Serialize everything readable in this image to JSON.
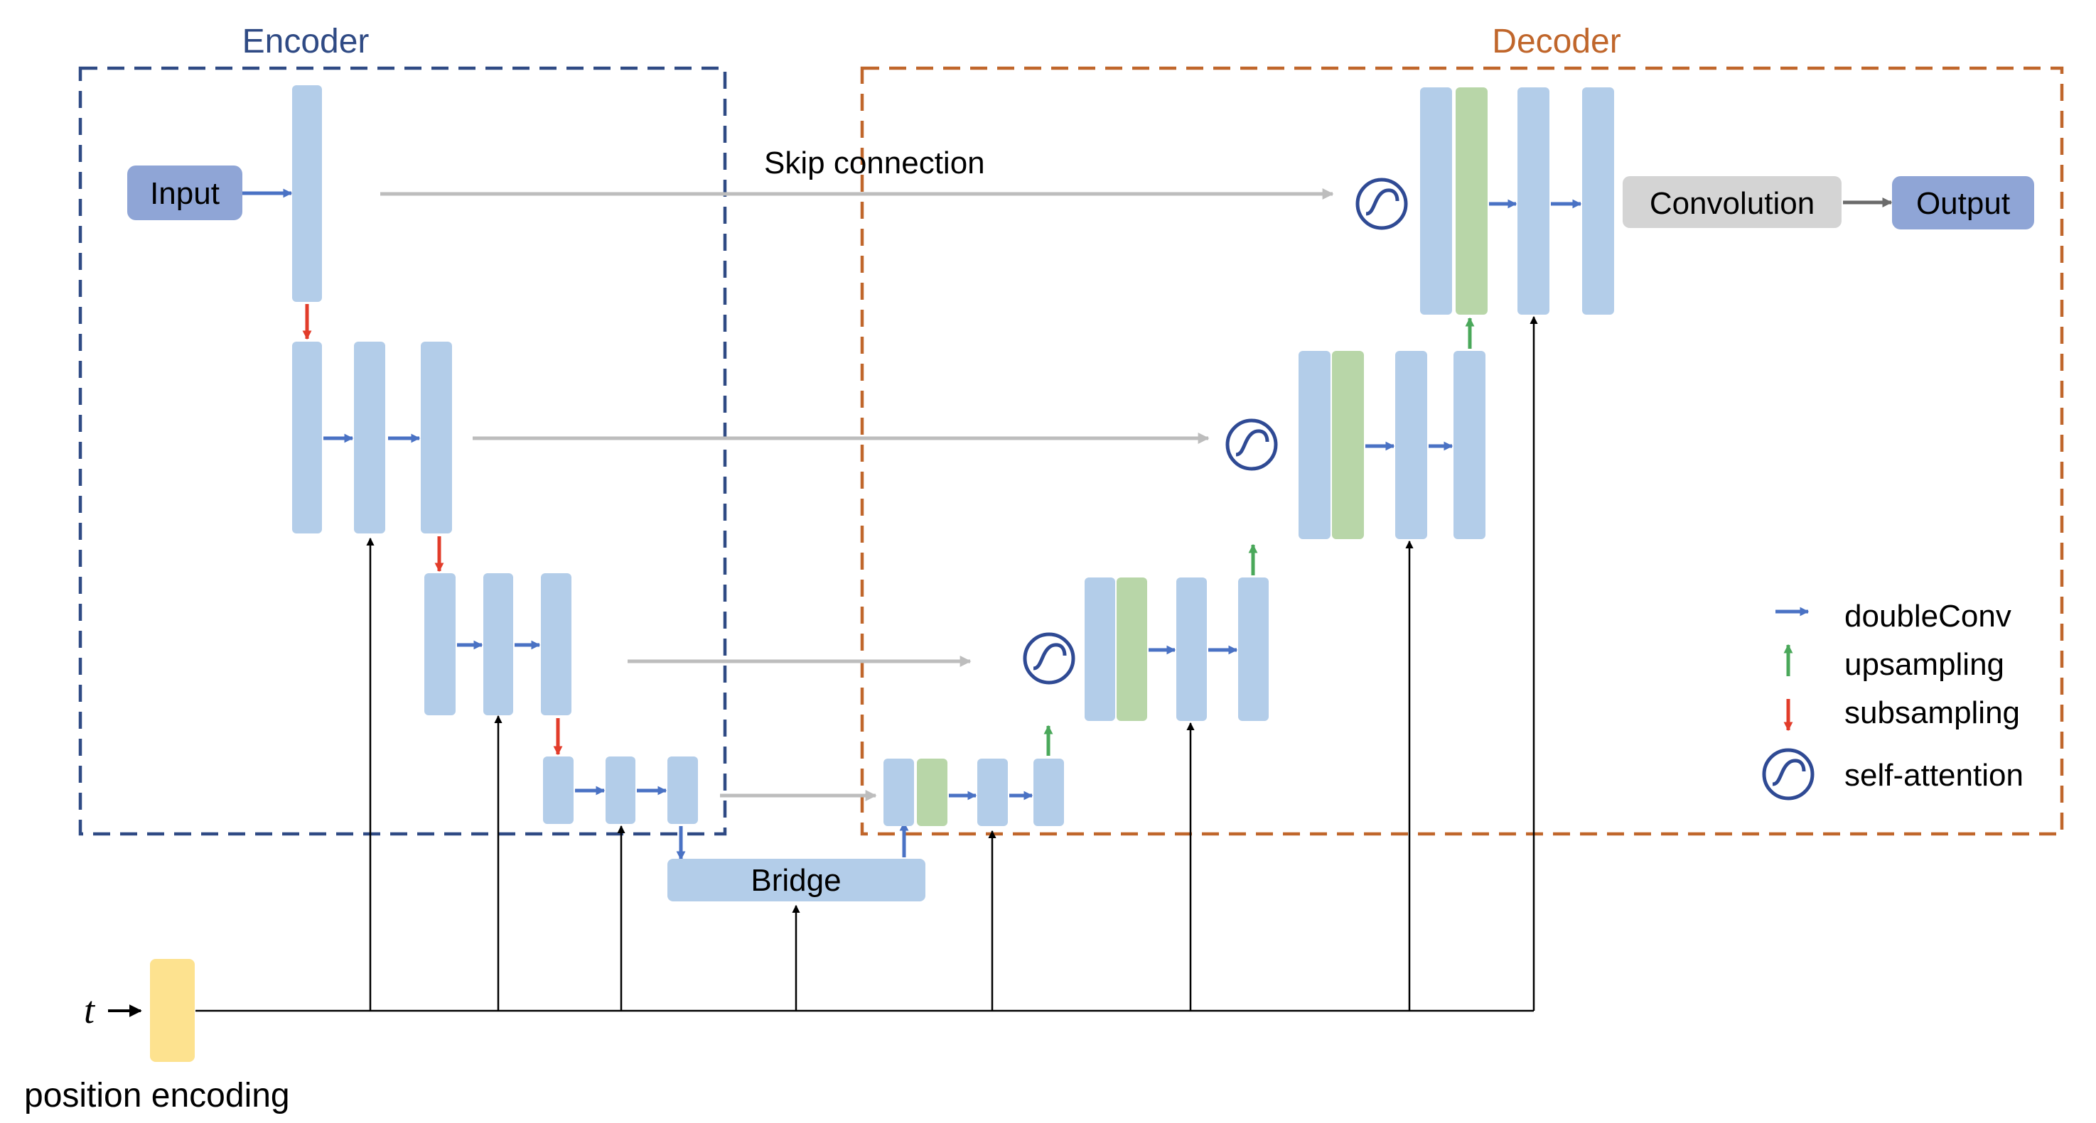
{
  "encoder": {
    "label": "Encoder",
    "color": "#2f4a84"
  },
  "decoder": {
    "label": "Decoder",
    "color": "#c0662b"
  },
  "nodes": {
    "input": "Input",
    "output": "Output",
    "convolution": "Convolution",
    "bridge": "Bridge",
    "skip_connection": "Skip connection",
    "time_input": "t",
    "position_encoding": "position encoding"
  },
  "legend": [
    {
      "label": "doubleConv",
      "icon": "blue-arrow-right-icon",
      "color": "#4a72c4"
    },
    {
      "label": "upsampling",
      "icon": "green-arrow-up-icon",
      "color": "#4aa85a"
    },
    {
      "label": "subsampling",
      "icon": "red-arrow-down-icon",
      "color": "#e23c2a"
    },
    {
      "label": "self-attention",
      "icon": "self-attention-icon",
      "color": "#2f4a94"
    }
  ],
  "colors": {
    "feature_block": "#b3cde9",
    "concat_block": "#b8d6a8",
    "position_block": "#fde28f",
    "input_output": "#8fa5d6",
    "convolution": "#d4d4d4",
    "skip_arrow": "#bdbdbd"
  }
}
